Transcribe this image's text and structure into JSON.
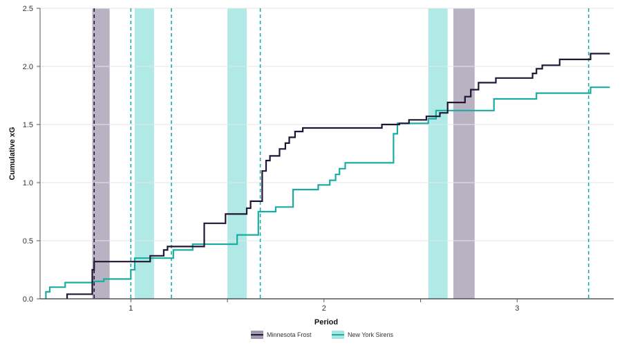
{
  "chart_data": {
    "type": "line",
    "step": true,
    "xlabel": "Period",
    "ylabel": "Cumulative xG",
    "xlim": [
      0.53,
      3.5
    ],
    "ylim": [
      0,
      2.5
    ],
    "x_ticks": [
      1,
      2,
      3
    ],
    "x_tick_labels": [
      "1",
      "2",
      "3"
    ],
    "x_minor_ticks": [
      1.5,
      2.5
    ],
    "y_ticks": [
      0,
      0.5,
      1,
      1.5,
      2,
      2.5
    ],
    "y_tick_labels": [
      "0.0",
      "0.5",
      "1.0",
      "1.5",
      "2.0",
      "2.5"
    ],
    "grid": "horizontal",
    "legend_position": "bottom-center",
    "series": [
      {
        "name": "Minnesota Frost",
        "color": "#1f1535",
        "band_color": "#8a7f99",
        "goals": [
          0.81
        ],
        "penalties": [
          [
            0.8,
            0.89
          ],
          [
            2.67,
            2.78
          ]
        ],
        "points": [
          [
            0.67,
            0.0
          ],
          [
            0.67,
            0.04
          ],
          [
            0.8,
            0.04
          ],
          [
            0.8,
            0.25
          ],
          [
            0.81,
            0.25
          ],
          [
            0.81,
            0.32
          ],
          [
            1.1,
            0.32
          ],
          [
            1.1,
            0.37
          ],
          [
            1.17,
            0.37
          ],
          [
            1.17,
            0.42
          ],
          [
            1.19,
            0.42
          ],
          [
            1.19,
            0.45
          ],
          [
            1.38,
            0.45
          ],
          [
            1.38,
            0.65
          ],
          [
            1.49,
            0.65
          ],
          [
            1.49,
            0.73
          ],
          [
            1.6,
            0.73
          ],
          [
            1.6,
            0.78
          ],
          [
            1.62,
            0.78
          ],
          [
            1.62,
            0.84
          ],
          [
            1.68,
            0.84
          ],
          [
            1.68,
            1.1
          ],
          [
            1.7,
            1.1
          ],
          [
            1.7,
            1.19
          ],
          [
            1.72,
            1.19
          ],
          [
            1.72,
            1.23
          ],
          [
            1.77,
            1.23
          ],
          [
            1.77,
            1.29
          ],
          [
            1.8,
            1.29
          ],
          [
            1.8,
            1.34
          ],
          [
            1.82,
            1.34
          ],
          [
            1.82,
            1.39
          ],
          [
            1.85,
            1.39
          ],
          [
            1.85,
            1.44
          ],
          [
            1.89,
            1.44
          ],
          [
            1.89,
            1.47
          ],
          [
            2.3,
            1.47
          ],
          [
            2.3,
            1.5
          ],
          [
            2.39,
            1.5
          ],
          [
            2.39,
            1.51
          ],
          [
            2.44,
            1.51
          ],
          [
            2.44,
            1.54
          ],
          [
            2.53,
            1.54
          ],
          [
            2.53,
            1.57
          ],
          [
            2.6,
            1.57
          ],
          [
            2.6,
            1.6
          ],
          [
            2.64,
            1.6
          ],
          [
            2.64,
            1.69
          ],
          [
            2.73,
            1.69
          ],
          [
            2.73,
            1.74
          ],
          [
            2.76,
            1.74
          ],
          [
            2.76,
            1.8
          ],
          [
            2.8,
            1.8
          ],
          [
            2.8,
            1.86
          ],
          [
            2.89,
            1.86
          ],
          [
            2.89,
            1.9
          ],
          [
            3.08,
            1.9
          ],
          [
            3.08,
            1.94
          ],
          [
            3.1,
            1.94
          ],
          [
            3.1,
            1.98
          ],
          [
            3.13,
            1.98
          ],
          [
            3.13,
            2.01
          ],
          [
            3.22,
            2.01
          ],
          [
            3.22,
            2.06
          ],
          [
            3.38,
            2.06
          ],
          [
            3.38,
            2.11
          ],
          [
            3.48,
            2.11
          ]
        ]
      },
      {
        "name": "New York Sirens",
        "color": "#19ada2",
        "band_color": "#8fe0dc",
        "goals": [
          1.0,
          1.21,
          1.67,
          3.37
        ],
        "penalties": [
          [
            1.02,
            1.12
          ],
          [
            1.5,
            1.6
          ],
          [
            2.54,
            2.64
          ]
        ],
        "points": [
          [
            0.56,
            0.0
          ],
          [
            0.56,
            0.06
          ],
          [
            0.58,
            0.06
          ],
          [
            0.58,
            0.1
          ],
          [
            0.66,
            0.1
          ],
          [
            0.66,
            0.14
          ],
          [
            0.8,
            0.14
          ],
          [
            0.8,
            0.15
          ],
          [
            0.86,
            0.15
          ],
          [
            0.86,
            0.17
          ],
          [
            1.0,
            0.17
          ],
          [
            1.0,
            0.25
          ],
          [
            1.02,
            0.25
          ],
          [
            1.02,
            0.35
          ],
          [
            1.22,
            0.35
          ],
          [
            1.22,
            0.42
          ],
          [
            1.32,
            0.42
          ],
          [
            1.32,
            0.47
          ],
          [
            1.55,
            0.47
          ],
          [
            1.55,
            0.55
          ],
          [
            1.66,
            0.55
          ],
          [
            1.66,
            0.75
          ],
          [
            1.75,
            0.75
          ],
          [
            1.75,
            0.79
          ],
          [
            1.84,
            0.79
          ],
          [
            1.84,
            0.94
          ],
          [
            1.97,
            0.94
          ],
          [
            1.97,
            0.98
          ],
          [
            2.03,
            0.98
          ],
          [
            2.03,
            1.02
          ],
          [
            2.06,
            1.02
          ],
          [
            2.06,
            1.07
          ],
          [
            2.08,
            1.07
          ],
          [
            2.08,
            1.12
          ],
          [
            2.11,
            1.12
          ],
          [
            2.11,
            1.17
          ],
          [
            2.36,
            1.17
          ],
          [
            2.36,
            1.42
          ],
          [
            2.38,
            1.42
          ],
          [
            2.38,
            1.51
          ],
          [
            2.54,
            1.51
          ],
          [
            2.54,
            1.55
          ],
          [
            2.58,
            1.55
          ],
          [
            2.58,
            1.62
          ],
          [
            2.88,
            1.62
          ],
          [
            2.88,
            1.72
          ],
          [
            3.1,
            1.72
          ],
          [
            3.1,
            1.77
          ],
          [
            3.38,
            1.77
          ],
          [
            3.38,
            1.82
          ],
          [
            3.48,
            1.82
          ]
        ]
      }
    ]
  }
}
